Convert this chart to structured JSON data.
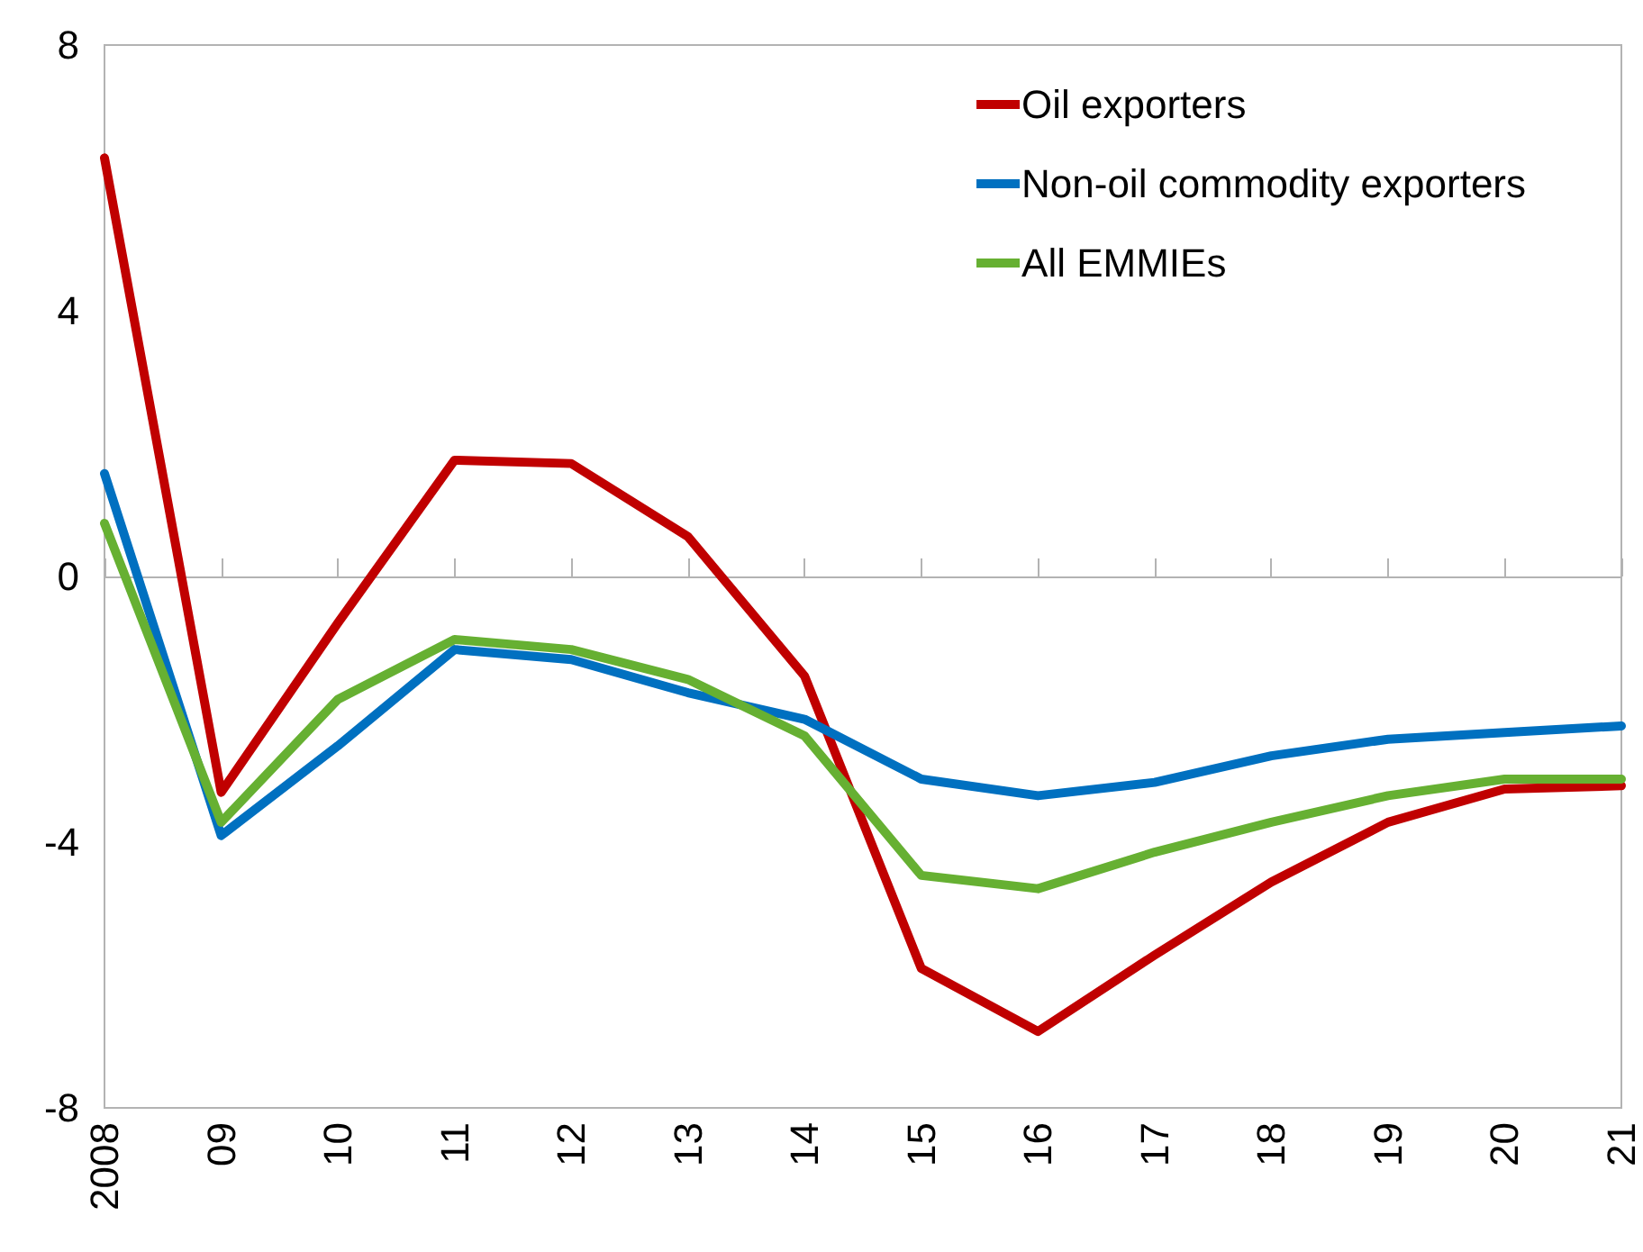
{
  "chart_data": {
    "type": "line",
    "categories": [
      "2008",
      "09",
      "10",
      "11",
      "12",
      "13",
      "14",
      "15",
      "16",
      "17",
      "18",
      "19",
      "20",
      "21"
    ],
    "series": [
      {
        "name": "Oil exporters",
        "color": "#c00000",
        "values": [
          6.3,
          -3.25,
          -0.7,
          1.75,
          1.7,
          0.6,
          -1.5,
          -5.9,
          -6.85,
          -5.7,
          -4.6,
          -3.7,
          -3.2,
          -3.15
        ]
      },
      {
        "name": "Non-oil commodity exporters",
        "color": "#0070c0",
        "values": [
          1.55,
          -3.9,
          -2.55,
          -1.1,
          -1.25,
          -1.75,
          -2.15,
          -3.05,
          -3.3,
          -3.1,
          -2.7,
          -2.45,
          -2.35,
          -2.25
        ]
      },
      {
        "name": "All EMMIEs",
        "color": "#66b032",
        "values": [
          0.8,
          -3.7,
          -1.85,
          -0.95,
          -1.1,
          -1.55,
          -2.4,
          -4.5,
          -4.7,
          -4.15,
          -3.7,
          -3.3,
          -3.05,
          -3.05
        ]
      }
    ],
    "ylim": [
      -8,
      8
    ],
    "yticks": [
      -8,
      -4,
      0,
      4,
      8
    ],
    "legend": "top right",
    "marker": "none",
    "line_style": "solid"
  }
}
